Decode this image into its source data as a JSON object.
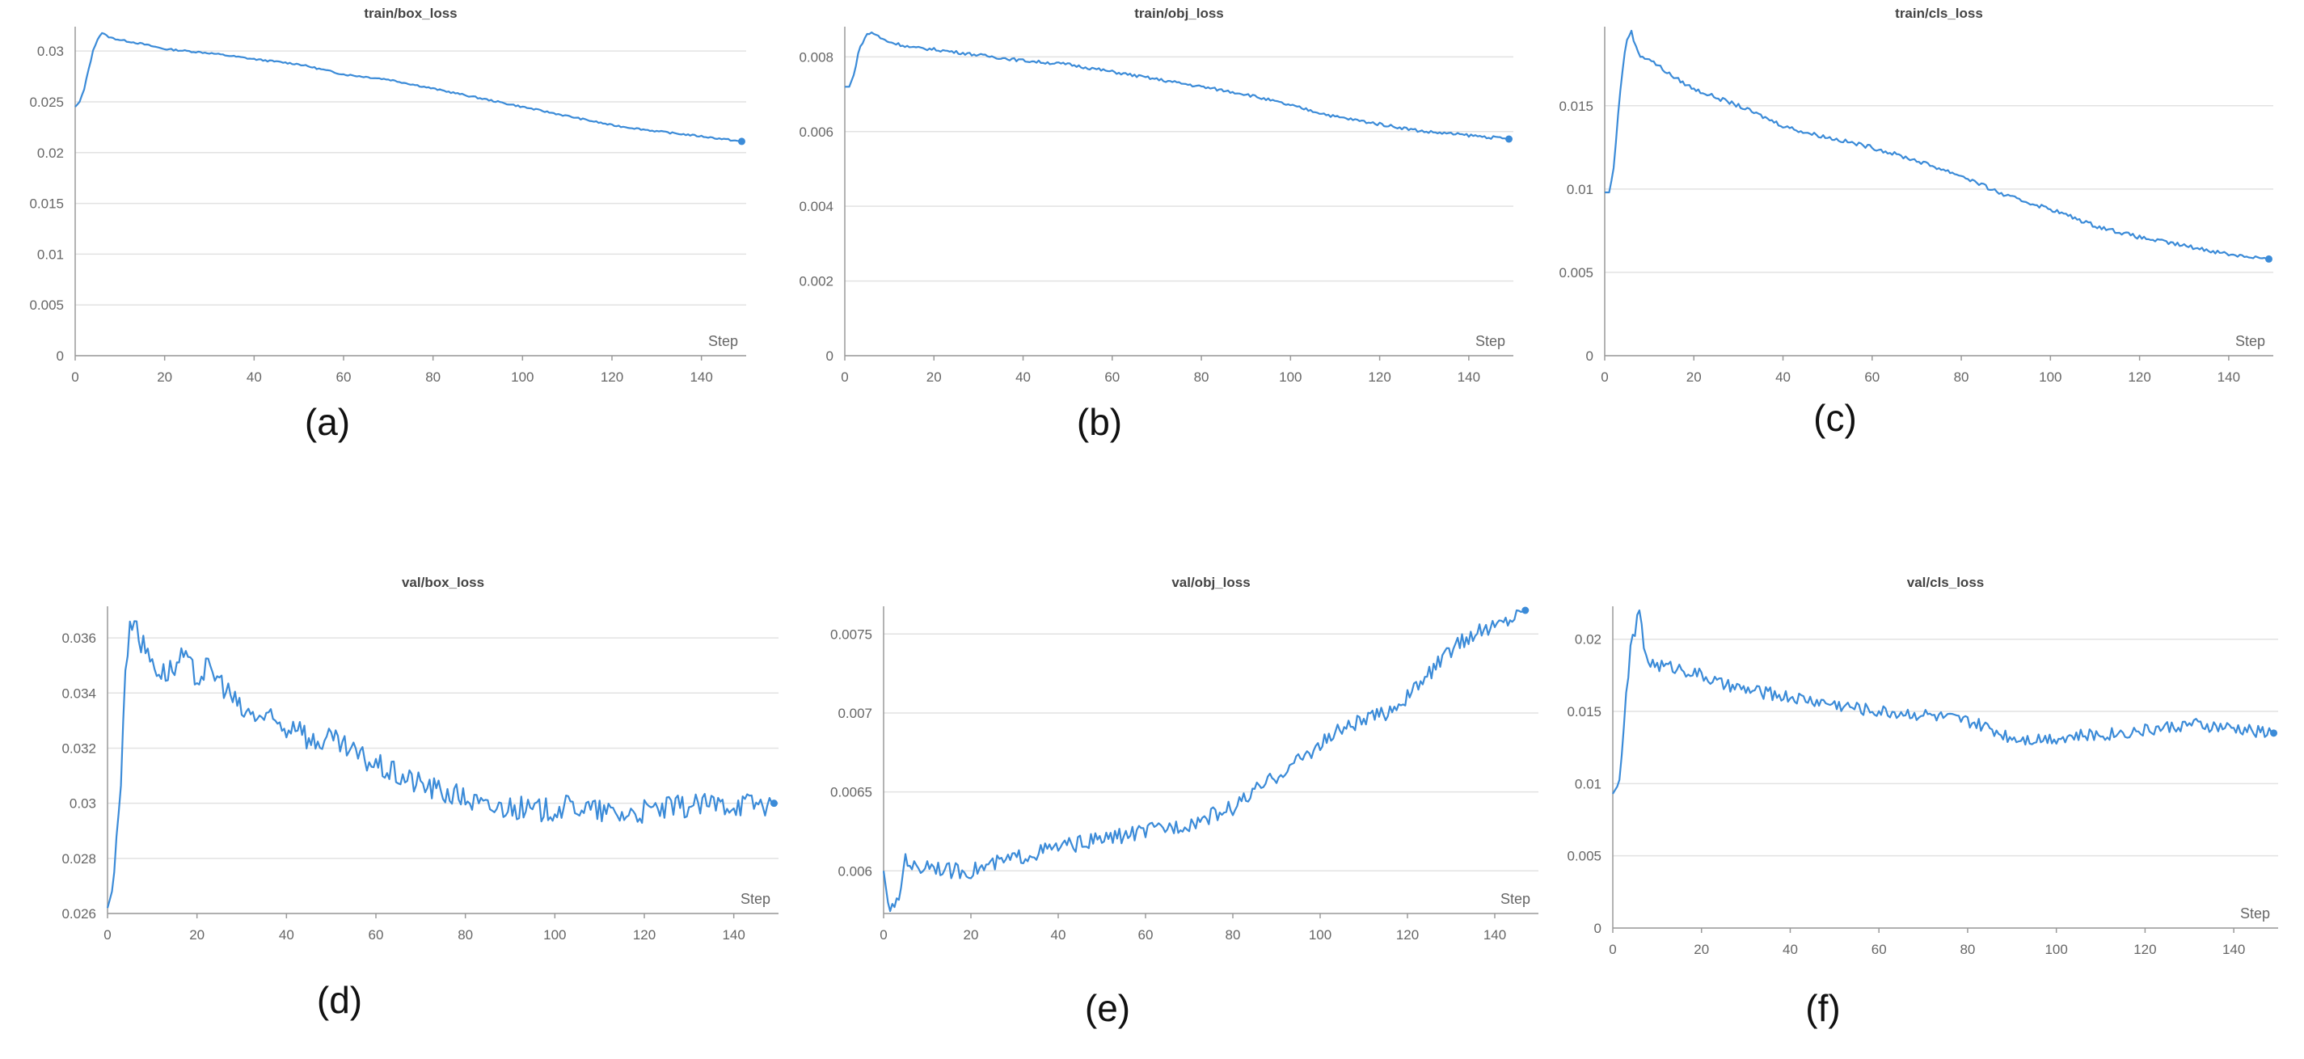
{
  "chart_data": [
    {
      "type": "line",
      "title": "train/box_loss",
      "xlabel": "Step",
      "caption": "(a)",
      "xlim": [
        0,
        150
      ],
      "ylim": [
        0,
        0.032
      ],
      "xticks": [
        0,
        20,
        40,
        60,
        80,
        100,
        120,
        140
      ],
      "yticks": [
        0,
        0.005,
        0.01,
        0.015,
        0.02,
        0.025,
        0.03
      ],
      "ytick_labels": [
        "0",
        "0.005",
        "0.01",
        "0.015",
        "0.02",
        "0.025",
        "0.03"
      ],
      "grid": true,
      "noise": 8e-05,
      "series": [
        {
          "x": [
            0,
            1,
            2,
            3,
            4,
            5,
            6,
            7,
            8,
            10,
            15,
            20,
            30,
            40,
            50,
            60,
            70,
            80,
            90,
            100,
            110,
            120,
            130,
            140,
            149
          ],
          "y": [
            0.0245,
            0.025,
            0.0262,
            0.0282,
            0.03,
            0.0312,
            0.0318,
            0.0315,
            0.0313,
            0.0311,
            0.0307,
            0.0302,
            0.0298,
            0.0292,
            0.0287,
            0.0277,
            0.0272,
            0.0263,
            0.0254,
            0.0245,
            0.0236,
            0.0227,
            0.0221,
            0.0216,
            0.0211
          ]
        }
      ]
    },
    {
      "type": "line",
      "title": "train/obj_loss",
      "xlabel": "Step",
      "caption": "(b)",
      "xlim": [
        0,
        150
      ],
      "ylim": [
        0,
        0.0087
      ],
      "xticks": [
        0,
        20,
        40,
        60,
        80,
        100,
        120,
        140
      ],
      "yticks": [
        0,
        0.002,
        0.004,
        0.006,
        0.008
      ],
      "ytick_labels": [
        "0",
        "0.002",
        "0.004",
        "0.006",
        "0.008"
      ],
      "grid": true,
      "noise": 4e-05,
      "series": [
        {
          "x": [
            0,
            1,
            2,
            3,
            4,
            5,
            6,
            7,
            8,
            10,
            15,
            20,
            30,
            40,
            50,
            60,
            70,
            80,
            90,
            100,
            110,
            120,
            130,
            140,
            149
          ],
          "y": [
            0.0072,
            0.0072,
            0.0075,
            0.0081,
            0.0084,
            0.0086,
            0.00865,
            0.0086,
            0.0085,
            0.0084,
            0.00825,
            0.0082,
            0.00805,
            0.0079,
            0.0078,
            0.0076,
            0.0074,
            0.0072,
            0.007,
            0.0067,
            0.0064,
            0.0062,
            0.006,
            0.0059,
            0.0058
          ]
        }
      ]
    },
    {
      "type": "line",
      "title": "train/cls_loss",
      "xlabel": "Step",
      "caption": "(c)",
      "xlim": [
        0,
        150
      ],
      "ylim": [
        0,
        0.0195
      ],
      "xticks": [
        0,
        20,
        40,
        60,
        80,
        100,
        120,
        140
      ],
      "yticks": [
        0,
        0.005,
        0.01,
        0.015
      ],
      "ytick_labels": [
        "0",
        "0.005",
        "0.01",
        "0.015"
      ],
      "grid": true,
      "noise": 0.00012,
      "series": [
        {
          "x": [
            0,
            1,
            2,
            3,
            4,
            5,
            6,
            7,
            8,
            10,
            15,
            20,
            25,
            30,
            40,
            45,
            50,
            60,
            70,
            80,
            90,
            100,
            110,
            120,
            130,
            140,
            149
          ],
          "y": [
            0.0098,
            0.0098,
            0.0112,
            0.0145,
            0.0172,
            0.019,
            0.0195,
            0.0185,
            0.018,
            0.0178,
            0.0168,
            0.016,
            0.0155,
            0.015,
            0.0138,
            0.0134,
            0.0131,
            0.0125,
            0.0117,
            0.0108,
            0.0096,
            0.0088,
            0.0078,
            0.0071,
            0.0066,
            0.0061,
            0.0058
          ]
        }
      ]
    },
    {
      "type": "line",
      "title": "val/box_loss",
      "xlabel": "Step",
      "caption": "(d)",
      "xlim": [
        0,
        150
      ],
      "ylim": [
        0.026,
        0.037
      ],
      "xticks": [
        0,
        20,
        40,
        60,
        80,
        100,
        120,
        140
      ],
      "yticks": [
        0.026,
        0.028,
        0.03,
        0.032,
        0.034,
        0.036
      ],
      "ytick_labels": [
        "0.026",
        "0.028",
        "0.03",
        "0.032",
        "0.034",
        "0.036"
      ],
      "grid": true,
      "noise": 0.00045,
      "series": [
        {
          "x": [
            0,
            1,
            2,
            3,
            4,
            5,
            6,
            7,
            8,
            10,
            12,
            15,
            17,
            20,
            22,
            25,
            28,
            30,
            35,
            40,
            43,
            45,
            50,
            55,
            60,
            65,
            70,
            75,
            80,
            85,
            90,
            95,
            100,
            105,
            110,
            115,
            120,
            130,
            140,
            149
          ],
          "y": [
            0.0262,
            0.0268,
            0.0285,
            0.031,
            0.035,
            0.0362,
            0.037,
            0.036,
            0.0357,
            0.0352,
            0.0347,
            0.0349,
            0.0353,
            0.0345,
            0.0349,
            0.0345,
            0.0338,
            0.0333,
            0.0331,
            0.0327,
            0.033,
            0.0322,
            0.0323,
            0.0318,
            0.0314,
            0.031,
            0.0307,
            0.0304,
            0.0302,
            0.0298,
            0.0299,
            0.0297,
            0.0298,
            0.0299,
            0.0297,
            0.0296,
            0.0297,
            0.0299,
            0.03,
            0.03
          ]
        }
      ]
    },
    {
      "type": "line",
      "title": "val/obj_loss",
      "xlabel": "Step",
      "caption": "(e)",
      "xlim": [
        0,
        150
      ],
      "ylim": [
        0.00573,
        0.00765
      ],
      "xticks": [
        0,
        20,
        40,
        60,
        80,
        100,
        120,
        140
      ],
      "yticks": [
        0.006,
        0.0065,
        0.007,
        0.0075
      ],
      "ytick_labels": [
        "0.006",
        "0.0065",
        "0.007",
        "0.0075"
      ],
      "grid": true,
      "noise": 5e-05,
      "series": [
        {
          "x": [
            0,
            1,
            2,
            3,
            4,
            5,
            6,
            8,
            10,
            15,
            20,
            30,
            40,
            50,
            60,
            70,
            80,
            85,
            90,
            95,
            100,
            105,
            110,
            115,
            120,
            125,
            130,
            135,
            140,
            147
          ],
          "y": [
            0.006,
            0.0058,
            0.00575,
            0.00578,
            0.0059,
            0.0061,
            0.00605,
            0.006,
            0.00605,
            0.006,
            0.006,
            0.00608,
            0.00615,
            0.0062,
            0.00625,
            0.0063,
            0.0064,
            0.0065,
            0.0066,
            0.0067,
            0.0068,
            0.0069,
            0.00695,
            0.007,
            0.0071,
            0.00725,
            0.0074,
            0.0075,
            0.00755,
            0.00765
          ]
        }
      ]
    },
    {
      "type": "line",
      "title": "val/cls_loss",
      "xlabel": "Step",
      "caption": "(f)",
      "xlim": [
        0,
        150
      ],
      "ylim": [
        0,
        0.022
      ],
      "xticks": [
        0,
        20,
        40,
        60,
        80,
        100,
        120,
        140
      ],
      "yticks": [
        0,
        0.005,
        0.01,
        0.015,
        0.02
      ],
      "ytick_labels": [
        "0",
        "0.005",
        "0.01",
        "0.015",
        "0.02"
      ],
      "grid": true,
      "noise": 0.00045,
      "series": [
        {
          "x": [
            0,
            1,
            2,
            3,
            4,
            5,
            6,
            7,
            8,
            10,
            15,
            20,
            25,
            30,
            40,
            50,
            60,
            70,
            80,
            85,
            90,
            95,
            100,
            110,
            120,
            130,
            140,
            149
          ],
          "y": [
            0.0093,
            0.0098,
            0.0115,
            0.016,
            0.0195,
            0.0205,
            0.022,
            0.0195,
            0.0185,
            0.0182,
            0.018,
            0.0175,
            0.0168,
            0.0165,
            0.016,
            0.0155,
            0.015,
            0.0148,
            0.0143,
            0.0138,
            0.0132,
            0.0131,
            0.0132,
            0.0134,
            0.0137,
            0.0141,
            0.0138,
            0.0135
          ]
        }
      ]
    }
  ]
}
